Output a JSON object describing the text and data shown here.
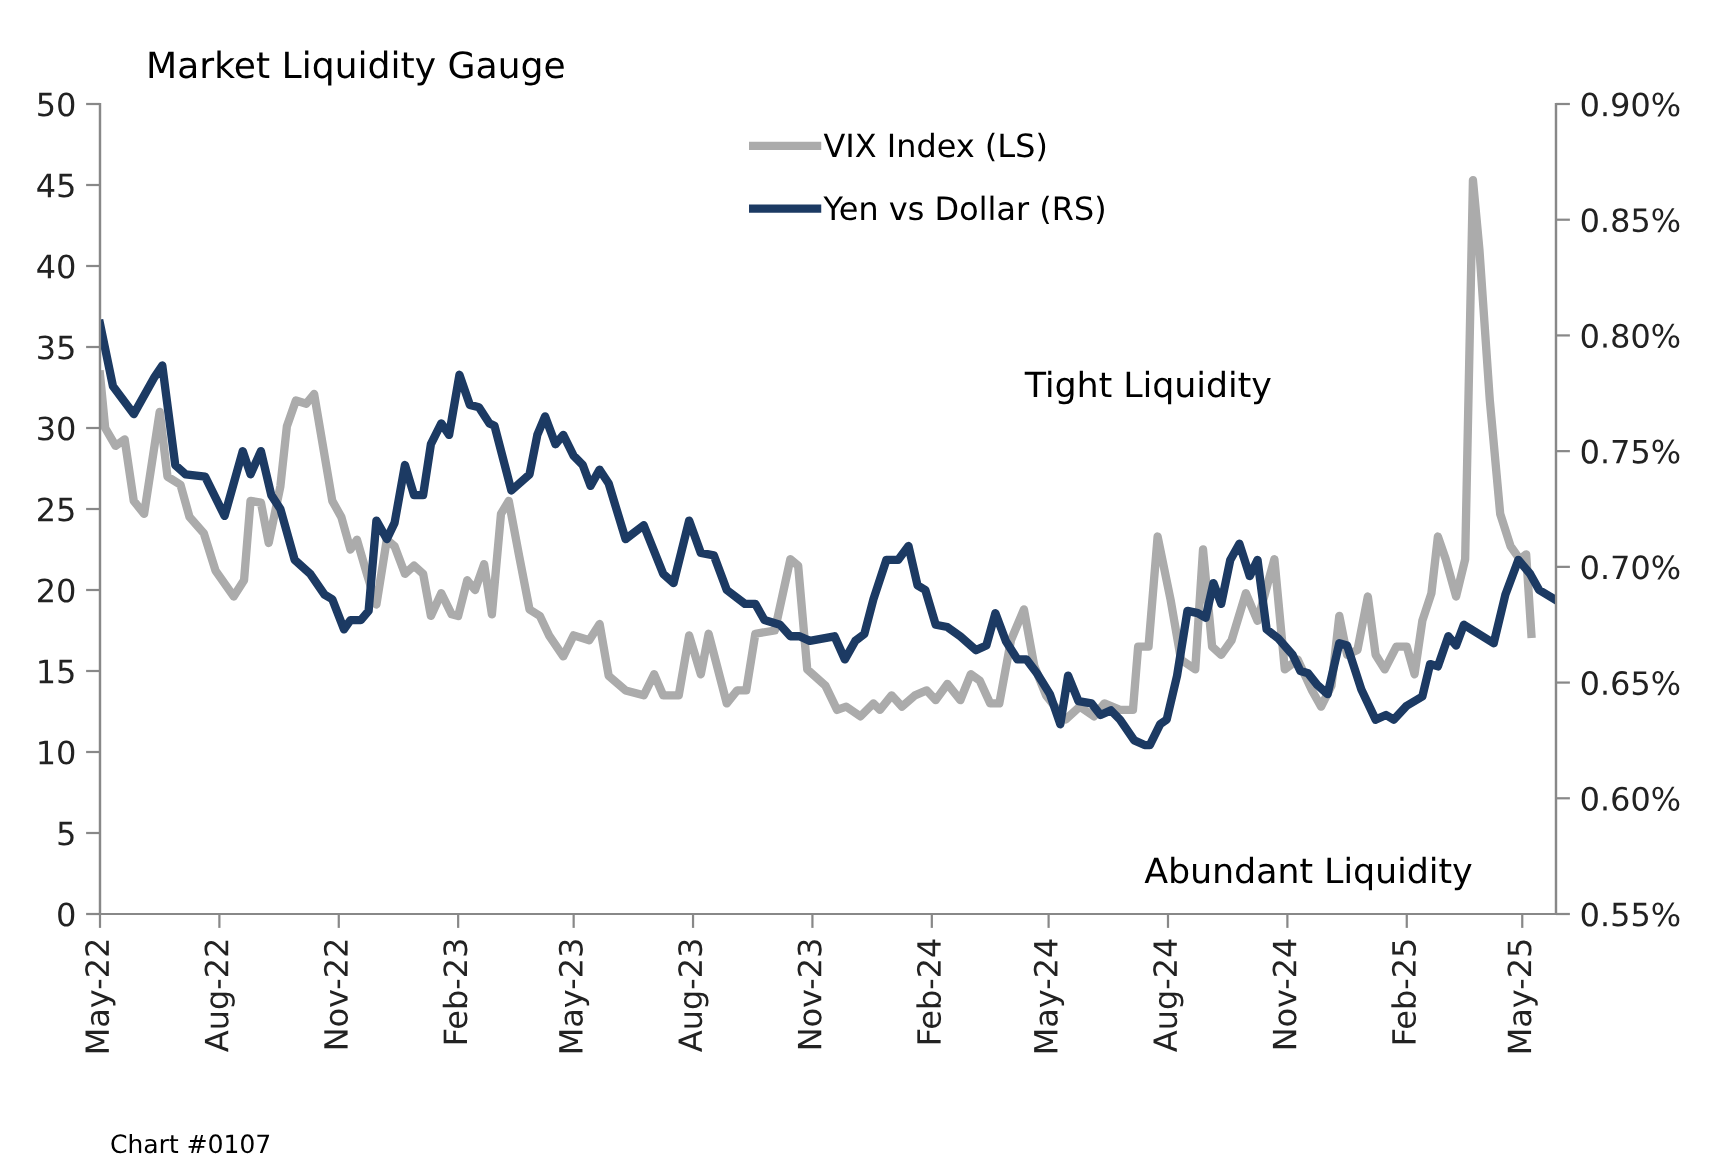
{
  "chart_data": {
    "type": "line",
    "title": "Market Liquidity Gauge",
    "xlim": [
      "2022-05-01",
      "2025-05-27"
    ],
    "xticks": [
      {
        "value": "2022-05-01",
        "label": "May-22"
      },
      {
        "value": "2022-08-01",
        "label": "Aug-22"
      },
      {
        "value": "2022-11-01",
        "label": "Nov-22"
      },
      {
        "value": "2023-02-01",
        "label": "Feb-23"
      },
      {
        "value": "2023-05-01",
        "label": "May-23"
      },
      {
        "value": "2023-08-01",
        "label": "Aug-23"
      },
      {
        "value": "2023-11-01",
        "label": "Nov-23"
      },
      {
        "value": "2024-02-01",
        "label": "Feb-24"
      },
      {
        "value": "2024-05-01",
        "label": "May-24"
      },
      {
        "value": "2024-08-01",
        "label": "Aug-24"
      },
      {
        "value": "2024-11-01",
        "label": "Nov-24"
      },
      {
        "value": "2025-02-01",
        "label": "Feb-25"
      },
      {
        "value": "2025-05-01",
        "label": "May-25"
      }
    ],
    "ylim": [
      0,
      50
    ],
    "yticks": [
      0,
      5,
      10,
      15,
      20,
      25,
      30,
      35,
      40,
      45,
      50
    ],
    "y2lim": [
      0.55,
      0.9
    ],
    "y2ticks": [
      {
        "value": 0.55,
        "label": "0.55%"
      },
      {
        "value": 0.6,
        "label": "0.60%"
      },
      {
        "value": 0.65,
        "label": "0.65%"
      },
      {
        "value": 0.7,
        "label": "0.70%"
      },
      {
        "value": 0.75,
        "label": "0.75%"
      },
      {
        "value": 0.8,
        "label": "0.80%"
      },
      {
        "value": 0.85,
        "label": "0.85%"
      },
      {
        "value": 0.9,
        "label": "0.90%"
      }
    ],
    "grid": false,
    "legend": "top",
    "marker": "none",
    "line_style": "solid",
    "series": [
      {
        "name": "VIX Index (LS)",
        "color": "#ababab",
        "x": [
          "2022-05-01",
          "2022-05-05",
          "2022-05-13",
          "2022-05-20",
          "2022-05-27",
          "2022-06-04",
          "2022-06-16",
          "2022-06-22",
          "2022-07-02",
          "2022-07-09",
          "2022-07-20",
          "2022-07-29",
          "2022-08-12",
          "2022-08-20",
          "2022-08-25",
          "2022-09-02",
          "2022-09-08",
          "2022-09-17",
          "2022-09-22",
          "2022-09-29",
          "2022-10-07",
          "2022-10-13",
          "2022-10-27",
          "2022-11-03",
          "2022-11-10",
          "2022-11-15",
          "2022-11-23",
          "2022-11-30",
          "2022-12-08",
          "2022-12-14",
          "2022-12-22",
          "2022-12-29",
          "2023-01-05",
          "2023-01-11",
          "2023-01-19",
          "2023-01-27",
          "2023-02-01",
          "2023-02-08",
          "2023-02-14",
          "2023-02-21",
          "2023-02-27",
          "2023-03-06",
          "2023-03-12",
          "2023-03-20",
          "2023-03-28",
          "2023-04-05",
          "2023-04-12",
          "2023-04-23",
          "2023-05-01",
          "2023-05-13",
          "2023-05-21",
          "2023-05-28",
          "2023-06-10",
          "2023-06-24",
          "2023-07-02",
          "2023-07-09",
          "2023-07-21",
          "2023-07-29",
          "2023-08-07",
          "2023-08-13",
          "2023-08-27",
          "2023-09-04",
          "2023-09-11",
          "2023-09-18",
          "2023-10-03",
          "2023-10-15",
          "2023-10-21",
          "2023-10-28",
          "2023-11-11",
          "2023-11-20",
          "2023-11-27",
          "2023-12-08",
          "2023-12-18",
          "2023-12-23",
          "2024-01-01",
          "2024-01-09",
          "2024-01-19",
          "2024-01-28",
          "2024-02-04",
          "2024-02-13",
          "2024-02-23",
          "2024-03-02",
          "2024-03-09",
          "2024-03-17",
          "2024-03-24",
          "2024-04-02",
          "2024-04-12",
          "2024-04-20",
          "2024-04-29",
          "2024-05-14",
          "2024-05-25",
          "2024-06-05",
          "2024-06-13",
          "2024-06-25",
          "2024-07-05",
          "2024-07-09",
          "2024-07-17",
          "2024-07-24",
          "2024-08-03",
          "2024-08-11",
          "2024-08-22",
          "2024-08-28",
          "2024-09-04",
          "2024-09-11",
          "2024-09-19",
          "2024-09-30",
          "2024-10-09",
          "2024-10-22",
          "2024-10-30",
          "2024-11-09",
          "2024-11-20",
          "2024-11-27",
          "2024-12-05",
          "2024-12-11",
          "2024-12-17",
          "2024-12-25",
          "2025-01-02",
          "2025-01-08",
          "2025-01-15",
          "2025-01-24",
          "2025-02-01",
          "2025-02-07",
          "2025-02-13",
          "2025-02-20",
          "2025-02-25",
          "2025-03-03",
          "2025-03-11",
          "2025-03-18",
          "2025-03-24",
          "2025-03-29",
          "2025-04-06",
          "2025-04-14",
          "2025-04-22",
          "2025-04-29",
          "2025-05-04",
          "2025-05-08"
        ],
        "values": [
          33.3,
          30,
          28.9,
          29.3,
          25.5,
          24.7,
          31,
          27,
          26.5,
          24.5,
          23.5,
          21.2,
          19.6,
          20.6,
          25.5,
          25.4,
          22.9,
          26.4,
          30.1,
          31.7,
          31.5,
          32.1,
          25.5,
          24.5,
          22.5,
          23.1,
          20.9,
          19.1,
          23.1,
          22.7,
          21,
          21.5,
          21,
          18.4,
          19.8,
          18.5,
          18.4,
          20.6,
          20,
          21.6,
          18.5,
          24.7,
          25.5,
          22.1,
          18.8,
          18.4,
          17.2,
          15.9,
          17.2,
          16.9,
          17.9,
          14.7,
          13.8,
          13.5,
          14.8,
          13.5,
          13.5,
          17.2,
          14.8,
          17.3,
          13,
          13.8,
          13.8,
          17.3,
          17.5,
          21.9,
          21.5,
          15.1,
          14.1,
          12.6,
          12.8,
          12.2,
          13,
          12.6,
          13.5,
          12.8,
          13.5,
          13.8,
          13.2,
          14.2,
          13.2,
          14.8,
          14.4,
          13,
          13,
          16.9,
          18.8,
          15.3,
          13.5,
          12,
          12.8,
          12.2,
          13,
          12.6,
          12.6,
          16.5,
          16.5,
          23.3,
          19.4,
          15.7,
          15.1,
          22.5,
          16.5,
          16,
          16.9,
          19.8,
          18.1,
          21.9,
          15.1,
          15.7,
          13.8,
          12.8,
          14.1,
          18.4,
          16,
          16.3,
          19.6,
          16,
          15.1,
          16.5,
          16.5,
          14.8,
          18.1,
          19.8,
          23.3,
          21.9,
          19.6,
          21.9,
          45.3,
          41,
          31.7,
          24.7,
          22.7,
          21.9,
          22.2,
          17.3
        ]
      },
      {
        "name": "Yen vs Dollar (RS)",
        "color": "#1c3a63",
        "axis": "y2",
        "x": [
          "2022-05-01",
          "2022-05-11",
          "2022-05-27",
          "2022-06-12",
          "2022-06-18",
          "2022-06-28",
          "2022-07-06",
          "2022-07-21",
          "2022-08-05",
          "2022-08-19",
          "2022-08-25",
          "2022-09-02",
          "2022-09-10",
          "2022-09-17",
          "2022-09-28",
          "2022-10-10",
          "2022-10-21",
          "2022-10-27",
          "2022-11-05",
          "2022-11-10",
          "2022-11-18",
          "2022-11-24",
          "2022-11-30",
          "2022-12-08",
          "2022-12-14",
          "2022-12-22",
          "2022-12-29",
          "2023-01-05",
          "2023-01-11",
          "2023-01-19",
          "2023-01-25",
          "2023-02-02",
          "2023-02-10",
          "2023-02-17",
          "2023-02-25",
          "2023-03-01",
          "2023-03-14",
          "2023-03-28",
          "2023-04-03",
          "2023-04-09",
          "2023-04-17",
          "2023-04-23",
          "2023-05-01",
          "2023-05-08",
          "2023-05-14",
          "2023-05-21",
          "2023-05-28",
          "2023-06-10",
          "2023-06-24",
          "2023-07-09",
          "2023-07-17",
          "2023-07-29",
          "2023-08-07",
          "2023-08-17",
          "2023-08-27",
          "2023-09-10",
          "2023-09-18",
          "2023-09-25",
          "2023-10-07",
          "2023-10-15",
          "2023-10-22",
          "2023-10-30",
          "2023-11-18",
          "2023-11-26",
          "2023-12-04",
          "2023-12-11",
          "2023-12-18",
          "2023-12-28",
          "2024-01-06",
          "2024-01-14",
          "2024-01-21",
          "2024-01-27",
          "2024-02-04",
          "2024-02-13",
          "2024-02-23",
          "2024-03-06",
          "2024-03-14",
          "2024-03-21",
          "2024-03-29",
          "2024-04-07",
          "2024-04-14",
          "2024-04-22",
          "2024-05-02",
          "2024-05-10",
          "2024-05-16",
          "2024-05-24",
          "2024-06-03",
          "2024-06-10",
          "2024-06-18",
          "2024-06-25",
          "2024-07-06",
          "2024-07-14",
          "2024-07-18",
          "2024-07-26",
          "2024-07-31",
          "2024-08-08",
          "2024-08-16",
          "2024-08-24",
          "2024-08-30",
          "2024-09-05",
          "2024-09-11",
          "2024-09-18",
          "2024-09-25",
          "2024-10-03",
          "2024-10-09",
          "2024-10-16",
          "2024-10-25",
          "2024-11-05",
          "2024-11-11",
          "2024-11-17",
          "2024-11-24",
          "2024-12-02",
          "2024-12-11",
          "2024-12-17",
          "2024-12-28",
          "2025-01-08",
          "2025-01-16",
          "2025-01-22",
          "2025-02-01",
          "2025-02-13",
          "2025-02-19",
          "2025-02-25",
          "2025-03-05",
          "2025-03-11",
          "2025-03-17",
          "2025-04-09",
          "2025-04-18",
          "2025-04-28",
          "2025-05-07",
          "2025-05-14",
          "2025-05-26"
        ],
        "values": [
          0.805,
          0.778,
          0.766,
          0.782,
          0.787,
          0.744,
          0.74,
          0.739,
          0.722,
          0.75,
          0.74,
          0.75,
          0.731,
          0.725,
          0.703,
          0.697,
          0.688,
          0.686,
          0.673,
          0.677,
          0.677,
          0.681,
          0.72,
          0.712,
          0.719,
          0.744,
          0.731,
          0.731,
          0.753,
          0.762,
          0.757,
          0.783,
          0.77,
          0.769,
          0.762,
          0.761,
          0.733,
          0.74,
          0.757,
          0.765,
          0.753,
          0.757,
          0.748,
          0.744,
          0.735,
          0.742,
          0.736,
          0.712,
          0.718,
          0.697,
          0.693,
          0.72,
          0.706,
          0.705,
          0.69,
          0.684,
          0.684,
          0.677,
          0.675,
          0.67,
          0.67,
          0.668,
          0.67,
          0.66,
          0.668,
          0.671,
          0.686,
          0.703,
          0.703,
          0.709,
          0.692,
          0.69,
          0.675,
          0.674,
          0.67,
          0.664,
          0.666,
          0.68,
          0.668,
          0.66,
          0.66,
          0.654,
          0.645,
          0.632,
          0.653,
          0.642,
          0.641,
          0.636,
          0.638,
          0.634,
          0.625,
          0.623,
          0.623,
          0.632,
          0.634,
          0.653,
          0.681,
          0.68,
          0.678,
          0.693,
          0.684,
          0.703,
          0.71,
          0.696,
          0.703,
          0.673,
          0.669,
          0.662,
          0.655,
          0.654,
          0.649,
          0.645,
          0.667,
          0.666,
          0.647,
          0.634,
          0.636,
          0.634,
          0.64,
          0.644,
          0.658,
          0.657,
          0.67,
          0.666,
          0.675,
          0.667,
          0.688,
          0.703,
          0.697,
          0.69,
          0.686
        ]
      }
    ],
    "annotations": [
      "Tight Liquidity",
      "Abundant Liquidity",
      "Chart #0107"
    ]
  }
}
